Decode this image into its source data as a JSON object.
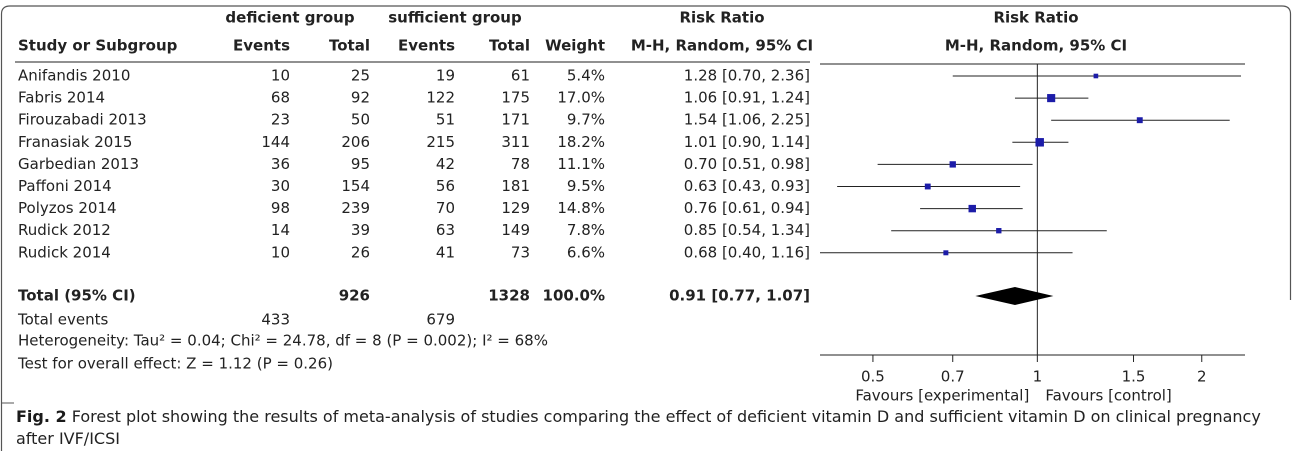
{
  "chart_data": {
    "type": "forest",
    "group_headers": [
      "deficient group",
      "sufficient group"
    ],
    "column_headers": [
      "Study or Subgroup",
      "Events",
      "Total",
      "Events",
      "Total",
      "Weight"
    ],
    "effect_header": "Risk Ratio",
    "effect_subheader": "M-H, Random, 95% CI",
    "plot_header": "Risk Ratio",
    "plot_subheader": "M-H, Random, 95% CI",
    "color": "#1c1ca8",
    "studies": [
      {
        "name": "Anifandis 2010",
        "events1": 10,
        "total1": 25,
        "events2": 19,
        "total2": 61,
        "weight": 5.4,
        "weight_label": "5.4%",
        "ci_label": "1.28 [0.70, 2.36]",
        "rr": 1.28,
        "lower": 0.7,
        "upper": 2.36
      },
      {
        "name": "Fabris 2014",
        "events1": 68,
        "total1": 92,
        "events2": 122,
        "total2": 175,
        "weight": 17.0,
        "weight_label": "17.0%",
        "ci_label": "1.06 [0.91, 1.24]",
        "rr": 1.06,
        "lower": 0.91,
        "upper": 1.24
      },
      {
        "name": "Firouzabadi 2013",
        "events1": 23,
        "total1": 50,
        "events2": 51,
        "total2": 171,
        "weight": 9.7,
        "weight_label": "9.7%",
        "ci_label": "1.54 [1.06, 2.25]",
        "rr": 1.54,
        "lower": 1.06,
        "upper": 2.25
      },
      {
        "name": "Franasiak 2015",
        "events1": 144,
        "total1": 206,
        "events2": 215,
        "total2": 311,
        "weight": 18.2,
        "weight_label": "18.2%",
        "ci_label": "1.01 [0.90, 1.14]",
        "rr": 1.01,
        "lower": 0.9,
        "upper": 1.14
      },
      {
        "name": "Garbedian 2013",
        "events1": 36,
        "total1": 95,
        "events2": 42,
        "total2": 78,
        "weight": 11.1,
        "weight_label": "11.1%",
        "ci_label": "0.70 [0.51, 0.98]",
        "rr": 0.7,
        "lower": 0.51,
        "upper": 0.98
      },
      {
        "name": "Paffoni 2014",
        "events1": 30,
        "total1": 154,
        "events2": 56,
        "total2": 181,
        "weight": 9.5,
        "weight_label": "9.5%",
        "ci_label": "0.63 [0.43, 0.93]",
        "rr": 0.63,
        "lower": 0.43,
        "upper": 0.93
      },
      {
        "name": "Polyzos 2014",
        "events1": 98,
        "total1": 239,
        "events2": 70,
        "total2": 129,
        "weight": 14.8,
        "weight_label": "14.8%",
        "ci_label": "0.76 [0.61, 0.94]",
        "rr": 0.76,
        "lower": 0.61,
        "upper": 0.94
      },
      {
        "name": "Rudick 2012",
        "events1": 14,
        "total1": 39,
        "events2": 63,
        "total2": 149,
        "weight": 7.8,
        "weight_label": "7.8%",
        "ci_label": "0.85 [0.54, 1.34]",
        "rr": 0.85,
        "lower": 0.54,
        "upper": 1.34
      },
      {
        "name": "Rudick 2014",
        "events1": 10,
        "total1": 26,
        "events2": 41,
        "total2": 73,
        "weight": 6.6,
        "weight_label": "6.6%",
        "ci_label": "0.68 [0.40, 1.16]",
        "rr": 0.68,
        "lower": 0.4,
        "upper": 1.16
      }
    ],
    "total": {
      "name": "Total (95% CI)",
      "total1": 926,
      "total2": 1328,
      "weight": 100.0,
      "weight_label": "100.0%",
      "ci_label": "0.91 [0.77, 1.07]",
      "rr": 0.91,
      "lower": 0.77,
      "upper": 1.07
    },
    "total_events": {
      "name": "Total events",
      "events1": 433,
      "events2": 679
    },
    "heterogeneity": "Heterogeneity: Tau² = 0.04; Chi² = 24.78, df = 8 (P = 0.002); I² = 68%",
    "overall_effect": "Test for overall effect: Z = 1.12 (P = 0.26)",
    "xscale": "log",
    "xlim": [
      0.4,
      2.4
    ],
    "xticks": [
      0.5,
      0.7,
      1,
      1.5,
      2
    ],
    "x_labels": [
      "Favours [experimental]",
      "Favours [control]"
    ]
  },
  "caption": {
    "label": "Fig. 2",
    "text": "Forest plot showing the results of meta-analysis of studies comparing the effect of deficient vitamin D and sufficient vitamin D on clinical pregnancy after IVF/ICSI"
  }
}
